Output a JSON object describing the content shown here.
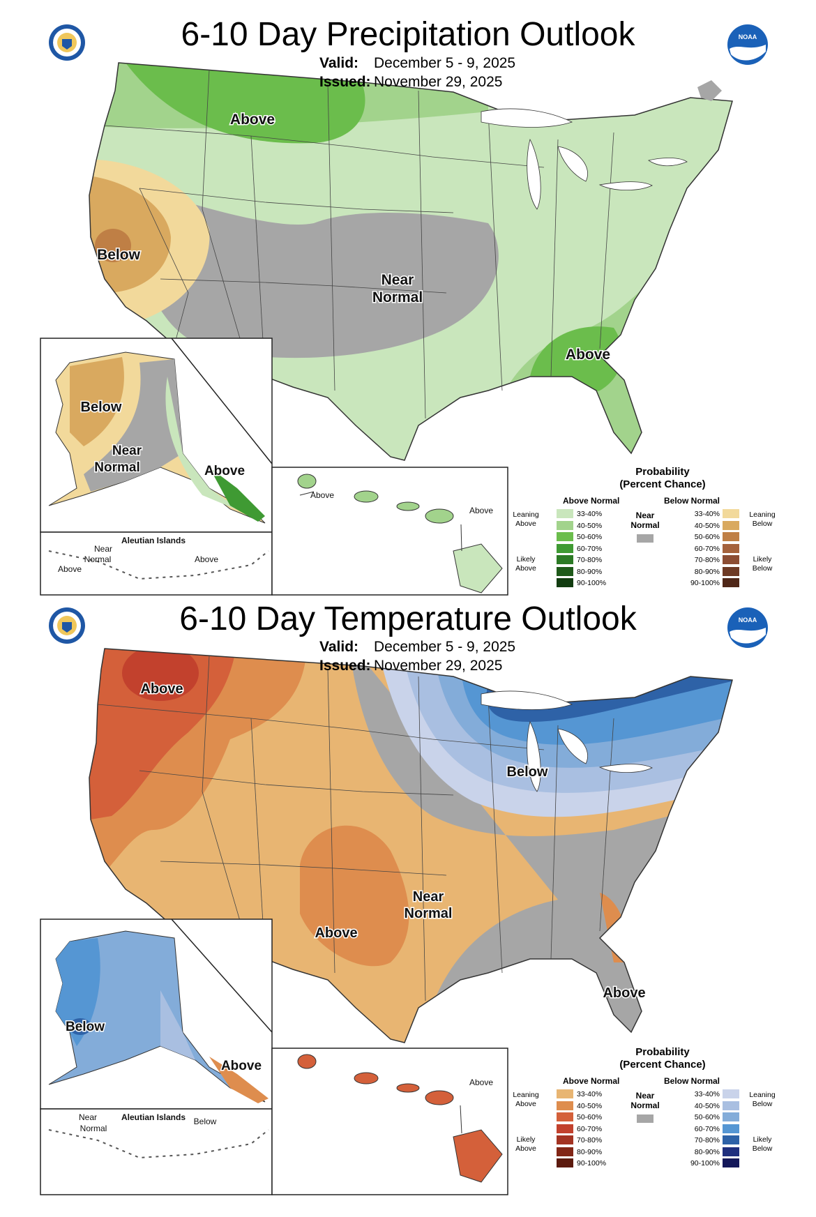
{
  "precip": {
    "title": "6-10 Day Precipitation Outlook",
    "valid_label": "Valid:",
    "valid_value": "December 5 - 9, 2025",
    "issued_label": "Issued:",
    "issued_value": "November 29, 2025",
    "labels": {
      "above_nw": "Above",
      "below": "Below",
      "near_line1": "Near",
      "near_line2": "Normal",
      "above_se": "Above",
      "ak_below": "Below",
      "ak_near1": "Near",
      "ak_near2": "Normal",
      "ak_above": "Above",
      "aleutian_title": "Aleutian Islands",
      "aleutian_near1": "Near",
      "aleutian_near2": "Normal",
      "aleutian_above_w": "Above",
      "aleutian_above_e": "Above",
      "hi_above_w": "Above",
      "hi_above_e": "Above"
    }
  },
  "temp": {
    "title": "6-10 Day Temperature Outlook",
    "valid_label": "Valid:",
    "valid_value": "December 5 - 9, 2025",
    "issued_label": "Issued:",
    "issued_value": "November 29, 2025",
    "labels": {
      "above_nw": "Above",
      "below": "Below",
      "near_line1": "Near",
      "near_line2": "Normal",
      "above_sw": "Above",
      "above_fl": "Above",
      "ak_below": "Below",
      "ak_above": "Above",
      "aleutian_title": "Aleutian Islands",
      "aleutian_near1": "Near",
      "aleutian_near2": "Normal",
      "aleutian_below": "Below",
      "hi_above": "Above"
    }
  },
  "legend": {
    "title_line1": "Probability",
    "title_line2": "(Percent Chance)",
    "above_normal": "Above Normal",
    "below_normal": "Below Normal",
    "near_normal_line1": "Near",
    "near_normal_line2": "Normal",
    "leaning_above_1": "Leaning",
    "leaning_above_2": "Above",
    "likely_above_1": "Likely",
    "likely_above_2": "Above",
    "leaning_below_1": "Leaning",
    "leaning_below_2": "Below",
    "likely_below_1": "Likely",
    "likely_below_2": "Below",
    "ranges": [
      "33-40%",
      "40-50%",
      "50-60%",
      "60-70%",
      "70-80%",
      "80-90%",
      "90-100%"
    ]
  },
  "colors": {
    "precip_above": [
      "#c9e6bc",
      "#a2d38c",
      "#6bbd4c",
      "#3f9a33",
      "#2c7a25",
      "#1f5a1a",
      "#123c10"
    ],
    "precip_below": [
      "#f2d99b",
      "#d9a95f",
      "#bf7f45",
      "#a5623c",
      "#8c4d33",
      "#6e3a25",
      "#4f2718"
    ],
    "temp_above": [
      "#e8b572",
      "#de8d4e",
      "#d4603a",
      "#c2412d",
      "#a33322",
      "#822616",
      "#5c1a0e"
    ],
    "temp_below": [
      "#c9d3ea",
      "#a9bfe1",
      "#83acd9",
      "#5596d3",
      "#2e62a7",
      "#1f2f7e",
      "#14185a"
    ],
    "near_normal": "#a6a6a6"
  }
}
